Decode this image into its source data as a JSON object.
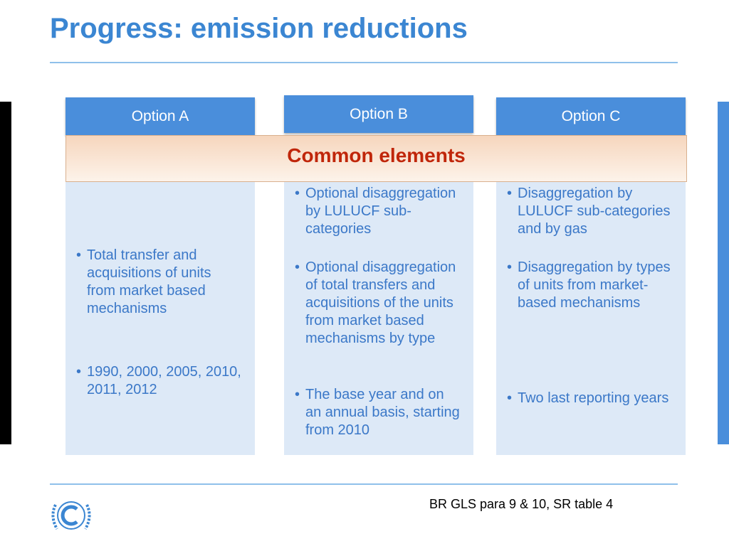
{
  "title": "Progress: emission reductions",
  "common_elements": "Common elements",
  "columns": [
    {
      "header": "Option A",
      "bullets": [
        "Total transfer and acquisitions of  units from market based mechanisms",
        "1990, 2000, 2005, 2010, 2011, 2012"
      ]
    },
    {
      "header": "Option B",
      "bullets": [
        "Optional disaggregation  by LULUCF sub-categories",
        "Optional disaggregation of total transfers and acquisitions of the units from market based mechanisms by type",
        "The base year and on an annual basis, starting from 2010"
      ]
    },
    {
      "header": "Option C",
      "bullets": [
        "Disaggregation  by LULUCF sub-categories and by gas",
        "Disaggregation by types of units from market-based mechanisms",
        "Two last reporting years"
      ]
    }
  ],
  "footer": "BR GLS para 9 & 10, SR table 4"
}
